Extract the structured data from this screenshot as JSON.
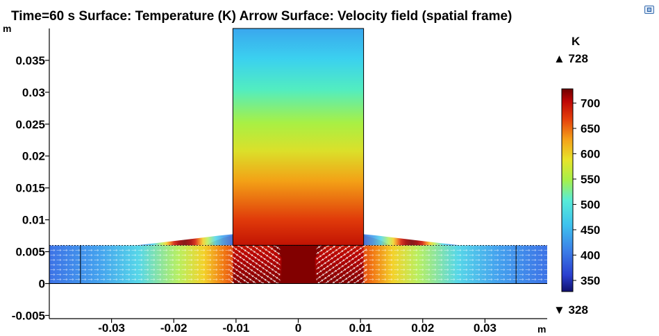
{
  "chart_data": {
    "type": "heatmap",
    "title": "Time=60 s  Surface: Temperature (K)  Arrow Surface: Velocity field (spatial frame)",
    "xlabel": "m",
    "ylabel": "m",
    "xlim": [
      -0.04,
      0.04
    ],
    "ylim": [
      -0.0055,
      0.04
    ],
    "x_ticks": [
      -0.03,
      -0.02,
      -0.01,
      0,
      0.01,
      0.02,
      0.03
    ],
    "x_tick_labels": [
      "-0.03",
      "-0.02",
      "-0.01",
      "0",
      "0.01",
      "0.02",
      "0.03"
    ],
    "y_ticks": [
      -0.005,
      0,
      0.005,
      0.01,
      0.015,
      0.02,
      0.025,
      0.03,
      0.035
    ],
    "y_tick_labels": [
      "-0.005",
      "0",
      "0.005",
      "0.01",
      "0.015",
      "0.02",
      "0.025",
      "0.03",
      "0.035"
    ],
    "grid": false,
    "colorbar": {
      "unit": "K",
      "max_label": "▲ 728",
      "min_label": "▼ 328",
      "max": 728,
      "min": 328,
      "ticks": [
        700,
        650,
        600,
        550,
        500,
        450,
        400,
        350
      ],
      "tick_labels": [
        "700",
        "650",
        "600",
        "550",
        "500",
        "450",
        "400",
        "350"
      ],
      "colormap": "rainbow"
    },
    "geometry": {
      "tool": {
        "x": [
          -0.0105,
          0.0105
        ],
        "y": [
          0,
          0.04
        ]
      },
      "plate": {
        "x": [
          -0.04,
          0.04
        ],
        "y": [
          0,
          0.006
        ]
      },
      "flash_edges": [
        -0.0125,
        0.0125
      ],
      "inner_lines_x": [
        -0.035,
        0.035
      ]
    },
    "temperature_field": {
      "tool_top": 430,
      "tool_bottom": 720,
      "plate_center": 720,
      "plate_edge": 370
    }
  }
}
